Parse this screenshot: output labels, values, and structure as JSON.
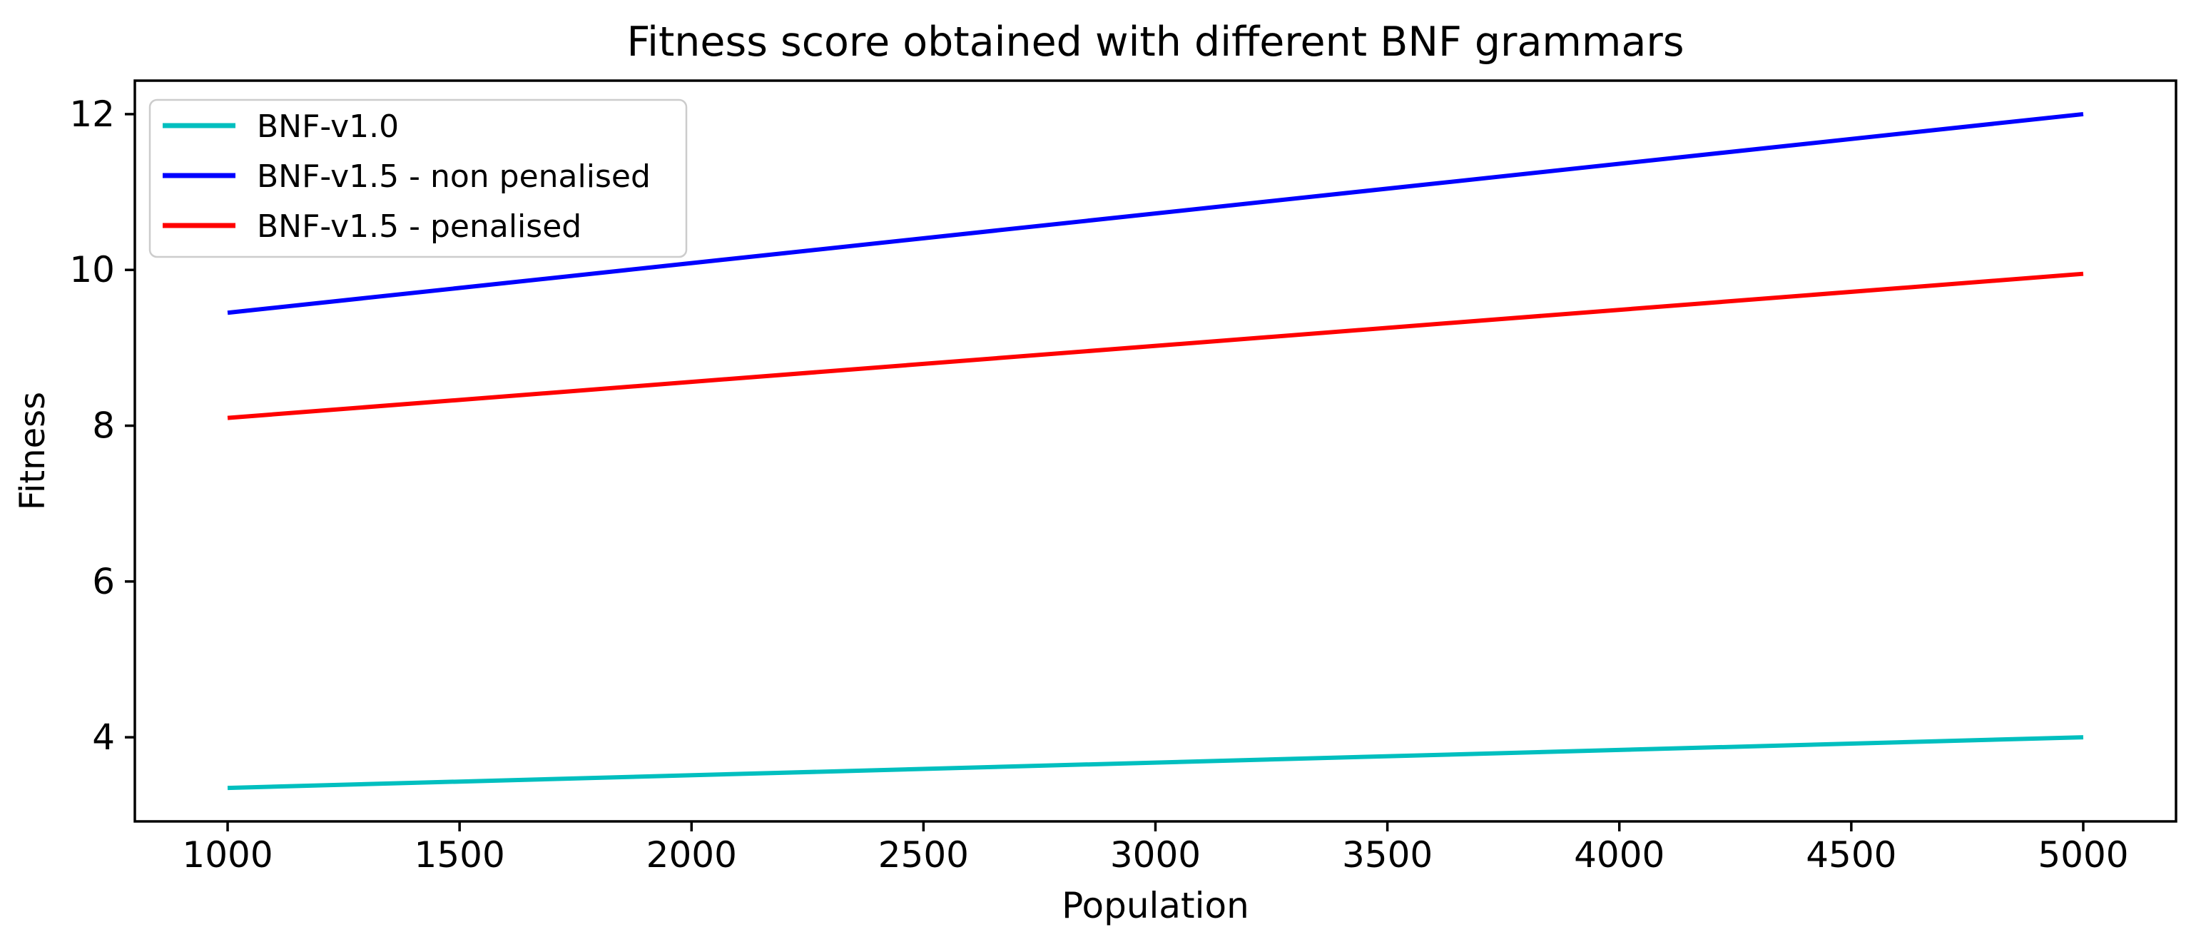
{
  "figure": {
    "background": "#ffffff",
    "text_color": "#000000",
    "spine_color": "#000000",
    "legend_border_color": "#cccccc"
  },
  "chart_data": {
    "type": "line",
    "title": "Fitness score obtained with different BNF grammars",
    "xlabel": "Population",
    "ylabel": "Fitness",
    "x": [
      1000,
      5000
    ],
    "series": [
      {
        "name": "BNF-v1.0",
        "color": "#00bfbf",
        "values": [
          3.35,
          4.0
        ]
      },
      {
        "name": "BNF-v1.5 - non penalised",
        "color": "#0000ff",
        "values": [
          9.45,
          12.0
        ]
      },
      {
        "name": "BNF-v1.5 - penalised",
        "color": "#ff0000",
        "values": [
          8.1,
          9.95
        ]
      }
    ],
    "x_ticks": [
      1000,
      1500,
      2000,
      2500,
      3000,
      3500,
      4000,
      4500,
      5000
    ],
    "y_ticks": [
      4,
      6,
      8,
      10,
      12
    ],
    "xlim": [
      800,
      5200
    ],
    "ylim": [
      2.92,
      12.43
    ],
    "grid": false,
    "legend_position": "upper left"
  }
}
